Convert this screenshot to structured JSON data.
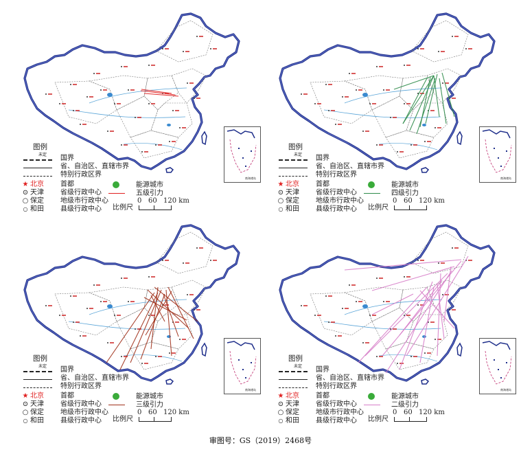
{
  "panels": [
    {
      "id": "p5",
      "force_label": "五级引力",
      "force_color": "#e02020"
    },
    {
      "id": "p4",
      "force_label": "四级引力",
      "force_color": "#2e8b4a"
    },
    {
      "id": "p3",
      "force_label": "三级引力",
      "force_color": "#a0301a"
    },
    {
      "id": "p2",
      "force_label": "二级引力",
      "force_color": "#d77ec8"
    }
  ],
  "legend": {
    "title": "图例",
    "undetermined": "未定",
    "national_border": "国界",
    "provincial_border": "省、自治区、直辖市界",
    "sar_border": "特别行政区界",
    "capital_city": "北京",
    "capital_label": "首都",
    "provincial_city": "天津",
    "provincial_label": "省级行政中心",
    "prefecture_city": "保定",
    "prefecture_label": "地级市行政中心",
    "county_city": "和田",
    "county_label": "县级行政中心",
    "energy_city": "能源城市",
    "scale_label": "比例尺",
    "scale_ticks": [
      "0",
      "60",
      "120 km"
    ]
  },
  "inset_label": "南海诸岛",
  "caption": "审图号：GS（2019）2468号"
}
